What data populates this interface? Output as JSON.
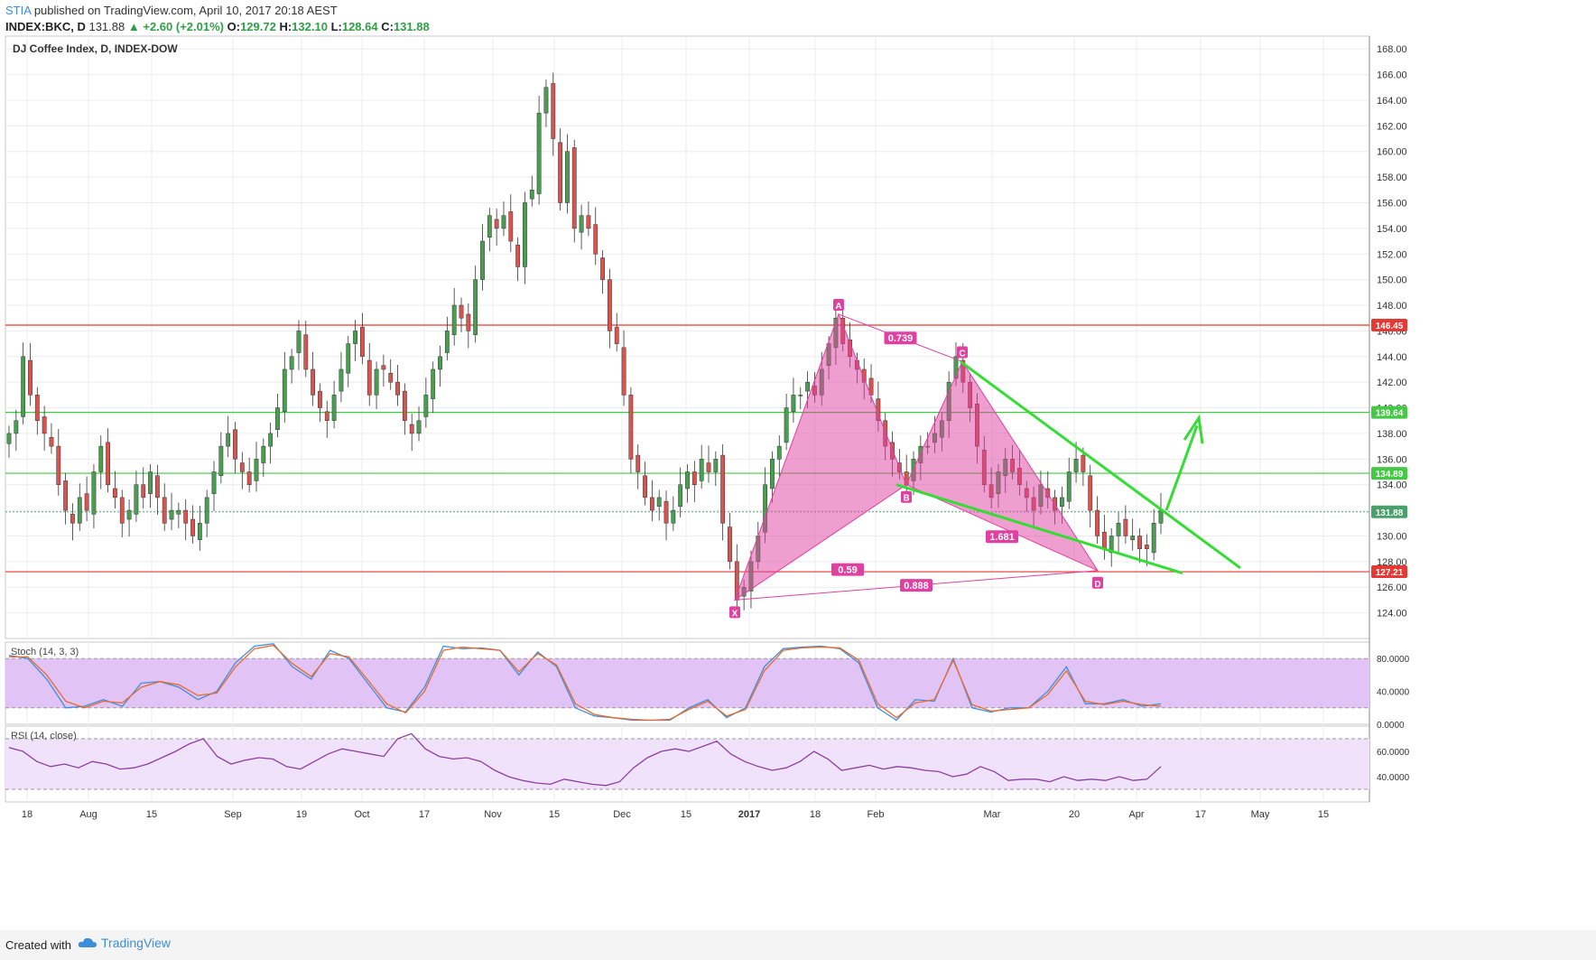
{
  "header": {
    "publisher": "STIA",
    "published_text": "published on TradingView.com, April 10, 2017 20:18 AEST",
    "symbol": "INDEX:BKC, D",
    "last": "131.88",
    "change": "+2.60 (+2.01%)",
    "o_label": "O:",
    "o": "129.72",
    "h_label": "H:",
    "h": "132.10",
    "l_label": "L:",
    "l": "128.64",
    "c_label": "C:",
    "c": "131.88"
  },
  "footer": {
    "created_with": "Created with",
    "brand": "TradingView"
  },
  "colors": {
    "up": "#4a9e52",
    "down": "#d9534f",
    "harmonic": "#e040a0",
    "green_line": "#33dd33",
    "resistance": "#e53935",
    "support": "#43c943",
    "stoch_fill": "#e1c4f5",
    "rsi_fill": "#f1e2fb"
  },
  "chart_data": [
    {
      "type": "candlestick",
      "title": "DJ Coffee Index, D, INDEX-DOW",
      "x_tick_labels": [
        "18",
        "Aug",
        "15",
        "Sep",
        "19",
        "Oct",
        "17",
        "Nov",
        "15",
        "Dec",
        "15",
        "2017",
        "18",
        "Feb",
        "Mar",
        "20",
        "Apr",
        "17",
        "May",
        "15"
      ],
      "ylim": [
        122,
        169
      ],
      "y_ticks": [
        124,
        126,
        128,
        130,
        132,
        134,
        136,
        138,
        140,
        142,
        144,
        146,
        148,
        150,
        152,
        154,
        156,
        158,
        160,
        162,
        164,
        166,
        168
      ],
      "horizontal_lines": [
        {
          "label": "146.45",
          "value": 146.45,
          "color": "#e53935"
        },
        {
          "label": "139.64",
          "value": 139.64,
          "color": "#43c943"
        },
        {
          "label": "134.89",
          "value": 134.89,
          "color": "#43c943"
        },
        {
          "label": "131.88",
          "value": 131.88,
          "color": "#4aa06a",
          "style": "dotted"
        },
        {
          "label": "127.21",
          "value": 127.21,
          "color": "#e53935"
        }
      ],
      "candle_close_path": [
        138,
        139,
        144,
        141,
        139,
        138,
        137,
        134,
        132,
        131,
        133,
        132,
        135,
        137,
        134,
        133,
        131,
        132,
        134,
        133,
        135,
        133,
        131,
        132,
        132,
        131,
        130,
        131,
        133,
        135,
        137,
        138,
        136,
        135,
        134,
        136,
        137,
        138,
        140,
        143,
        144,
        146,
        143,
        141,
        140,
        139,
        141,
        143,
        145,
        146,
        144,
        141,
        143,
        143,
        142,
        141,
        139,
        138,
        139,
        141,
        143,
        144,
        146,
        148,
        147,
        146,
        150,
        153,
        155,
        154,
        155,
        153,
        151,
        156,
        157,
        163,
        165,
        161,
        156,
        160,
        154,
        155,
        154,
        152,
        150,
        146,
        145,
        141,
        136,
        135,
        133,
        132,
        133,
        131,
        132,
        134,
        135,
        134,
        136,
        135,
        136,
        131,
        128,
        125,
        126,
        128,
        130,
        134,
        136,
        137,
        140,
        141,
        141,
        142,
        141,
        143,
        145,
        147,
        145,
        144,
        143,
        142,
        141,
        139,
        137,
        136,
        135,
        134,
        136,
        137,
        137,
        138,
        139,
        142,
        144,
        142,
        140,
        137,
        134,
        133,
        135,
        136,
        135,
        134,
        133,
        132,
        134,
        133,
        132,
        133,
        135,
        136,
        135,
        132,
        130,
        129,
        130,
        131,
        130,
        130,
        129,
        129,
        131,
        132
      ],
      "harmonic_pattern": {
        "points": [
          {
            "label": "X",
            "price": 125.0
          },
          {
            "label": "A",
            "price": 147.3
          },
          {
            "label": "B",
            "price": 134.0
          },
          {
            "label": "C",
            "price": 143.6
          },
          {
            "label": "D",
            "price": 127.3
          }
        ],
        "ratios": [
          "0.739",
          "0.59",
          "1.681",
          "0.888"
        ]
      }
    },
    {
      "type": "line",
      "title": "Stoch (14, 3, 3)",
      "ylim": [
        0,
        100
      ],
      "y_ticks": [
        "80.0000",
        "40.0000",
        "0.0000"
      ],
      "band": [
        20,
        80
      ],
      "series": [
        {
          "color": "#3d8fe0",
          "values": [
            84,
            80,
            55,
            20,
            22,
            30,
            22,
            50,
            52,
            45,
            30,
            40,
            75,
            95,
            98,
            70,
            55,
            90,
            80,
            50,
            20,
            15,
            45,
            95,
            92,
            93,
            90,
            60,
            88,
            70,
            20,
            10,
            8,
            5,
            5,
            5,
            20,
            30,
            8,
            20,
            70,
            92,
            94,
            95,
            92,
            75,
            20,
            5,
            30,
            28,
            80,
            20,
            15,
            20,
            20,
            40,
            70,
            25,
            25,
            30,
            22,
            25
          ]
        },
        {
          "color": "#ea6a2b",
          "values": [
            82,
            82,
            60,
            28,
            20,
            28,
            26,
            45,
            52,
            48,
            35,
            38,
            70,
            92,
            96,
            74,
            58,
            86,
            82,
            54,
            25,
            14,
            40,
            90,
            94,
            92,
            90,
            64,
            86,
            72,
            25,
            12,
            8,
            6,
            5,
            6,
            18,
            28,
            10,
            18,
            65,
            90,
            93,
            94,
            93,
            78,
            25,
            8,
            26,
            30,
            78,
            24,
            16,
            18,
            20,
            36,
            65,
            28,
            24,
            28,
            24,
            22
          ]
        }
      ]
    },
    {
      "type": "line",
      "title": "RSI (14, close)",
      "ylim": [
        20,
        80
      ],
      "y_ticks": [
        "60.0000",
        "40.0000"
      ],
      "band": [
        30,
        70
      ],
      "series": [
        {
          "color": "#8b3fa0",
          "values": [
            63,
            60,
            52,
            48,
            50,
            47,
            52,
            50,
            46,
            47,
            50,
            55,
            60,
            66,
            70,
            56,
            50,
            53,
            55,
            54,
            48,
            46,
            52,
            58,
            62,
            60,
            58,
            56,
            70,
            74,
            62,
            56,
            54,
            55,
            52,
            45,
            40,
            37,
            35,
            34,
            38,
            36,
            34,
            33,
            36,
            47,
            55,
            60,
            62,
            60,
            64,
            68,
            58,
            52,
            48,
            45,
            47,
            52,
            60,
            54,
            45,
            47,
            49,
            46,
            48,
            47,
            45,
            44,
            40,
            42,
            48,
            44,
            37,
            38,
            38,
            36,
            40,
            37,
            38,
            37,
            40,
            37,
            38,
            48
          ]
        }
      ]
    }
  ]
}
